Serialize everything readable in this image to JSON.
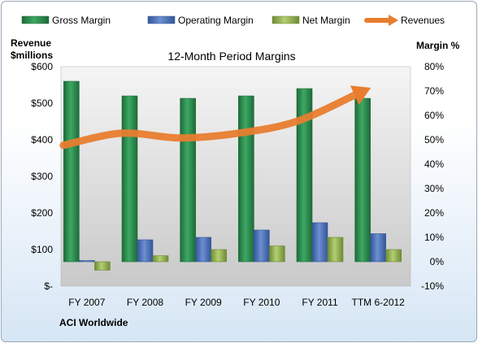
{
  "chart_data": {
    "type": "bar",
    "title": "12-Month Period Margins",
    "company": "ACI Worldwide",
    "left_axis_label_line1": "Revenue",
    "left_axis_label_line2": "$millions",
    "right_axis_label": "Margin %",
    "categories": [
      "FY 2007",
      "FY 2008",
      "FY 2009",
      "FY 2010",
      "FY 2011",
      "TTM 6-2012"
    ],
    "left_axis": {
      "min": 0,
      "max": 600,
      "step": 100,
      "tick_labels": [
        "$-",
        "$100",
        "$200",
        "$300",
        "$400",
        "$500",
        "$600"
      ]
    },
    "right_axis": {
      "min": -10,
      "max": 80,
      "step": 10,
      "tick_labels": [
        "-10%",
        "0%",
        "10%",
        "20%",
        "30%",
        "40%",
        "50%",
        "60%",
        "70%",
        "80%"
      ]
    },
    "series": [
      {
        "name": "Gross Margin",
        "axis": "right",
        "kind": "bar",
        "color": "#2e8b4e",
        "values": [
          74,
          68,
          67,
          68,
          71,
          67
        ]
      },
      {
        "name": "Operating Margin",
        "axis": "right",
        "kind": "bar",
        "color": "#4f74b8",
        "values": [
          0.5,
          9,
          10,
          13,
          16,
          11.5
        ]
      },
      {
        "name": "Net Margin",
        "axis": "right",
        "kind": "bar",
        "color": "#9bbb59",
        "values": [
          -3.5,
          2.5,
          5,
          6.5,
          10,
          5
        ]
      },
      {
        "name": "Revenues",
        "axis": "left",
        "kind": "line-arrow",
        "color": "#e87d2f",
        "values": [
          385,
          418,
          405,
          418,
          450,
          522
        ]
      }
    ],
    "legend_position": "top",
    "grid": false
  }
}
